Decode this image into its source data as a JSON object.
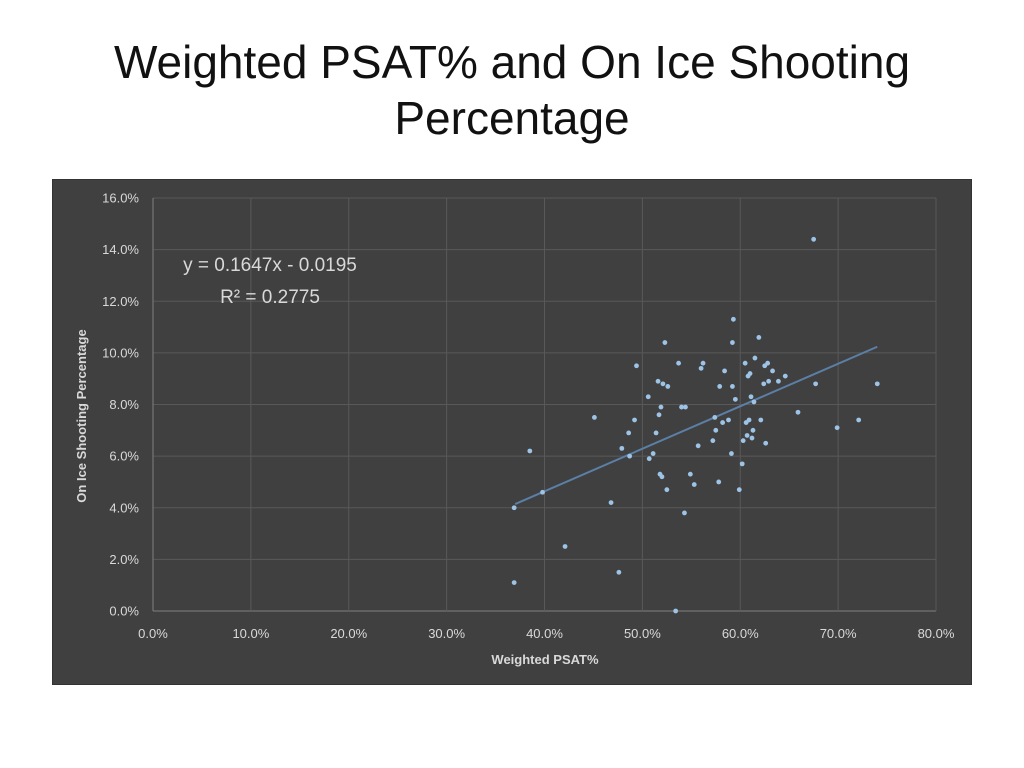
{
  "slide": {
    "title": "Weighted PSAT% and On Ice Shooting Percentage"
  },
  "chart_data": {
    "type": "scatter",
    "title": "",
    "xlabel": "Weighted PSAT%",
    "ylabel": "On Ice Shooting Percentage",
    "xlim": [
      0,
      0.8
    ],
    "ylim": [
      0,
      0.16
    ],
    "x_ticks": [
      "0.0%",
      "10.0%",
      "20.0%",
      "30.0%",
      "40.0%",
      "50.0%",
      "60.0%",
      "70.0%",
      "80.0%"
    ],
    "y_ticks": [
      "0.0%",
      "2.0%",
      "4.0%",
      "6.0%",
      "8.0%",
      "10.0%",
      "12.0%",
      "14.0%",
      "16.0%"
    ],
    "grid": true,
    "legend": "none",
    "trendline": {
      "slope": 0.1647,
      "intercept": -0.0195,
      "x_range": [
        0.37,
        0.74
      ],
      "equation": "y = 0.1647x - 0.0195",
      "r_squared": "R² = 0.2775"
    },
    "colors": {
      "background": "#404040",
      "grid": "#595959",
      "points": "#9dc3e6",
      "trendline": "#5b7fa6",
      "text": "#d9d9d9"
    },
    "points": [
      [
        0.369,
        0.04
      ],
      [
        0.369,
        0.011
      ],
      [
        0.385,
        0.062
      ],
      [
        0.398,
        0.046
      ],
      [
        0.421,
        0.025
      ],
      [
        0.451,
        0.075
      ],
      [
        0.468,
        0.042
      ],
      [
        0.476,
        0.015
      ],
      [
        0.479,
        0.063
      ],
      [
        0.486,
        0.069
      ],
      [
        0.487,
        0.06
      ],
      [
        0.492,
        0.074
      ],
      [
        0.494,
        0.095
      ],
      [
        0.506,
        0.083
      ],
      [
        0.507,
        0.059
      ],
      [
        0.511,
        0.061
      ],
      [
        0.514,
        0.069
      ],
      [
        0.516,
        0.089
      ],
      [
        0.517,
        0.076
      ],
      [
        0.518,
        0.053
      ],
      [
        0.519,
        0.079
      ],
      [
        0.52,
        0.052
      ],
      [
        0.521,
        0.088
      ],
      [
        0.523,
        0.104
      ],
      [
        0.525,
        0.047
      ],
      [
        0.526,
        0.087
      ],
      [
        0.534,
        0.0
      ],
      [
        0.537,
        0.096
      ],
      [
        0.54,
        0.079
      ],
      [
        0.543,
        0.038
      ],
      [
        0.544,
        0.079
      ],
      [
        0.549,
        0.053
      ],
      [
        0.553,
        0.049
      ],
      [
        0.557,
        0.064
      ],
      [
        0.56,
        0.094
      ],
      [
        0.562,
        0.096
      ],
      [
        0.572,
        0.066
      ],
      [
        0.574,
        0.075
      ],
      [
        0.575,
        0.07
      ],
      [
        0.578,
        0.05
      ],
      [
        0.579,
        0.087
      ],
      [
        0.582,
        0.073
      ],
      [
        0.584,
        0.093
      ],
      [
        0.588,
        0.074
      ],
      [
        0.591,
        0.061
      ],
      [
        0.592,
        0.087
      ],
      [
        0.592,
        0.104
      ],
      [
        0.593,
        0.113
      ],
      [
        0.595,
        0.082
      ],
      [
        0.599,
        0.047
      ],
      [
        0.602,
        0.057
      ],
      [
        0.603,
        0.066
      ],
      [
        0.605,
        0.096
      ],
      [
        0.606,
        0.073
      ],
      [
        0.607,
        0.068
      ],
      [
        0.608,
        0.091
      ],
      [
        0.609,
        0.074
      ],
      [
        0.61,
        0.092
      ],
      [
        0.611,
        0.083
      ],
      [
        0.612,
        0.067
      ],
      [
        0.613,
        0.07
      ],
      [
        0.614,
        0.081
      ],
      [
        0.615,
        0.098
      ],
      [
        0.619,
        0.106
      ],
      [
        0.621,
        0.074
      ],
      [
        0.624,
        0.088
      ],
      [
        0.625,
        0.095
      ],
      [
        0.626,
        0.065
      ],
      [
        0.628,
        0.096
      ],
      [
        0.629,
        0.089
      ],
      [
        0.633,
        0.093
      ],
      [
        0.639,
        0.089
      ],
      [
        0.646,
        0.091
      ],
      [
        0.659,
        0.077
      ],
      [
        0.675,
        0.144
      ],
      [
        0.677,
        0.088
      ],
      [
        0.699,
        0.071
      ],
      [
        0.721,
        0.074
      ],
      [
        0.74,
        0.088
      ]
    ]
  }
}
